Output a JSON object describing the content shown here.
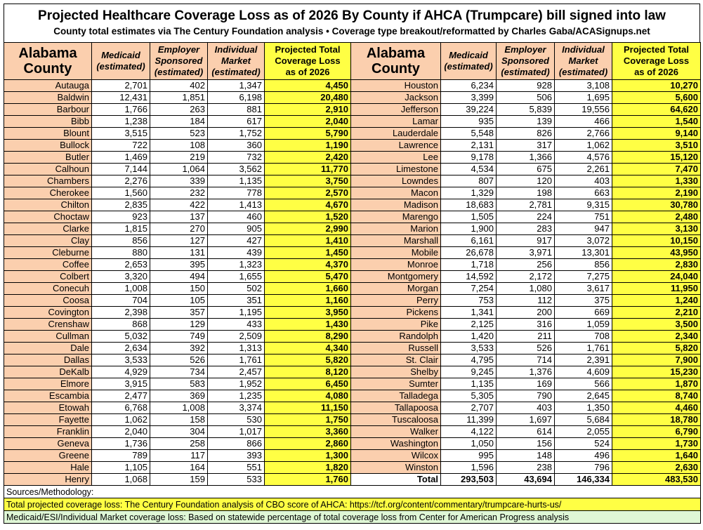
{
  "header": {
    "title": "Projected Healthcare Coverage Loss as of 2026 By County if AHCA (Trumpcare) bill signed into law",
    "subtitle": "County total estimates via The Century Foundation analysis • Coverage type breakout/reformatted by Charles Gaba/ACASignups.net"
  },
  "table": {
    "columns": [
      "Alabama\nCounty",
      "Medicaid\n(estimated)",
      "Employer\nSponsored\n(estimated)",
      "Individual\nMarket\n(estimated)",
      "Projected Total\nCoverage Loss\nas of 2026"
    ],
    "left_rows": [
      [
        "Autauga",
        "2,701",
        "402",
        "1,347",
        "4,450"
      ],
      [
        "Baldwin",
        "12,431",
        "1,851",
        "6,198",
        "20,480"
      ],
      [
        "Barbour",
        "1,766",
        "263",
        "881",
        "2,910"
      ],
      [
        "Bibb",
        "1,238",
        "184",
        "617",
        "2,040"
      ],
      [
        "Blount",
        "3,515",
        "523",
        "1,752",
        "5,790"
      ],
      [
        "Bullock",
        "722",
        "108",
        "360",
        "1,190"
      ],
      [
        "Butler",
        "1,469",
        "219",
        "732",
        "2,420"
      ],
      [
        "Calhoun",
        "7,144",
        "1,064",
        "3,562",
        "11,770"
      ],
      [
        "Chambers",
        "2,276",
        "339",
        "1,135",
        "3,750"
      ],
      [
        "Cherokee",
        "1,560",
        "232",
        "778",
        "2,570"
      ],
      [
        "Chilton",
        "2,835",
        "422",
        "1,413",
        "4,670"
      ],
      [
        "Choctaw",
        "923",
        "137",
        "460",
        "1,520"
      ],
      [
        "Clarke",
        "1,815",
        "270",
        "905",
        "2,990"
      ],
      [
        "Clay",
        "856",
        "127",
        "427",
        "1,410"
      ],
      [
        "Cleburne",
        "880",
        "131",
        "439",
        "1,450"
      ],
      [
        "Coffee",
        "2,653",
        "395",
        "1,323",
        "4,370"
      ],
      [
        "Colbert",
        "3,320",
        "494",
        "1,655",
        "5,470"
      ],
      [
        "Conecuh",
        "1,008",
        "150",
        "502",
        "1,660"
      ],
      [
        "Coosa",
        "704",
        "105",
        "351",
        "1,160"
      ],
      [
        "Covington",
        "2,398",
        "357",
        "1,195",
        "3,950"
      ],
      [
        "Crenshaw",
        "868",
        "129",
        "433",
        "1,430"
      ],
      [
        "Cullman",
        "5,032",
        "749",
        "2,509",
        "8,290"
      ],
      [
        "Dale",
        "2,634",
        "392",
        "1,313",
        "4,340"
      ],
      [
        "Dallas",
        "3,533",
        "526",
        "1,761",
        "5,820"
      ],
      [
        "DeKalb",
        "4,929",
        "734",
        "2,457",
        "8,120"
      ],
      [
        "Elmore",
        "3,915",
        "583",
        "1,952",
        "6,450"
      ],
      [
        "Escambia",
        "2,477",
        "369",
        "1,235",
        "4,080"
      ],
      [
        "Etowah",
        "6,768",
        "1,008",
        "3,374",
        "11,150"
      ],
      [
        "Fayette",
        "1,062",
        "158",
        "530",
        "1,750"
      ],
      [
        "Franklin",
        "2,040",
        "304",
        "1,017",
        "3,360"
      ],
      [
        "Geneva",
        "1,736",
        "258",
        "866",
        "2,860"
      ],
      [
        "Greene",
        "789",
        "117",
        "393",
        "1,300"
      ],
      [
        "Hale",
        "1,105",
        "164",
        "551",
        "1,820"
      ],
      [
        "Henry",
        "1,068",
        "159",
        "533",
        "1,760"
      ]
    ],
    "right_rows": [
      [
        "Houston",
        "6,234",
        "928",
        "3,108",
        "10,270"
      ],
      [
        "Jackson",
        "3,399",
        "506",
        "1,695",
        "5,600"
      ],
      [
        "Jefferson",
        "39,224",
        "5,839",
        "19,556",
        "64,620"
      ],
      [
        "Lamar",
        "935",
        "139",
        "466",
        "1,540"
      ],
      [
        "Lauderdale",
        "5,548",
        "826",
        "2,766",
        "9,140"
      ],
      [
        "Lawrence",
        "2,131",
        "317",
        "1,062",
        "3,510"
      ],
      [
        "Lee",
        "9,178",
        "1,366",
        "4,576",
        "15,120"
      ],
      [
        "Limestone",
        "4,534",
        "675",
        "2,261",
        "7,470"
      ],
      [
        "Lowndes",
        "807",
        "120",
        "403",
        "1,330"
      ],
      [
        "Macon",
        "1,329",
        "198",
        "663",
        "2,190"
      ],
      [
        "Madison",
        "18,683",
        "2,781",
        "9,315",
        "30,780"
      ],
      [
        "Marengo",
        "1,505",
        "224",
        "751",
        "2,480"
      ],
      [
        "Marion",
        "1,900",
        "283",
        "947",
        "3,130"
      ],
      [
        "Marshall",
        "6,161",
        "917",
        "3,072",
        "10,150"
      ],
      [
        "Mobile",
        "26,678",
        "3,971",
        "13,301",
        "43,950"
      ],
      [
        "Monroe",
        "1,718",
        "256",
        "856",
        "2,830"
      ],
      [
        "Montgomery",
        "14,592",
        "2,172",
        "7,275",
        "24,040"
      ],
      [
        "Morgan",
        "7,254",
        "1,080",
        "3,617",
        "11,950"
      ],
      [
        "Perry",
        "753",
        "112",
        "375",
        "1,240"
      ],
      [
        "Pickens",
        "1,341",
        "200",
        "669",
        "2,210"
      ],
      [
        "Pike",
        "2,125",
        "316",
        "1,059",
        "3,500"
      ],
      [
        "Randolph",
        "1,420",
        "211",
        "708",
        "2,340"
      ],
      [
        "Russell",
        "3,533",
        "526",
        "1,761",
        "5,820"
      ],
      [
        "St. Clair",
        "4,795",
        "714",
        "2,391",
        "7,900"
      ],
      [
        "Shelby",
        "9,245",
        "1,376",
        "4,609",
        "15,230"
      ],
      [
        "Sumter",
        "1,135",
        "169",
        "566",
        "1,870"
      ],
      [
        "Talladega",
        "5,305",
        "790",
        "2,645",
        "8,740"
      ],
      [
        "Tallapoosa",
        "2,707",
        "403",
        "1,350",
        "4,460"
      ],
      [
        "Tuscaloosa",
        "11,399",
        "1,697",
        "5,684",
        "18,780"
      ],
      [
        "Walker",
        "4,122",
        "614",
        "2,055",
        "6,790"
      ],
      [
        "Washington",
        "1,050",
        "156",
        "524",
        "1,730"
      ],
      [
        "Wilcox",
        "995",
        "148",
        "496",
        "1,640"
      ],
      [
        "Winston",
        "1,596",
        "238",
        "796",
        "2,630"
      ],
      [
        "Total",
        "293,503",
        "43,694",
        "146,334",
        "483,530"
      ]
    ]
  },
  "footer": {
    "sources_label": "Sources/Methodology:",
    "notes": [
      "Total projected coverage loss: The Century Foundation analysis of CBO score of AHCA: https://tcf.org/content/commentary/trumpcare-hurts-us/",
      "Medicaid/ESI/Individual Market coverage loss: Based on statewide percentage of total coverage loss from Center for American Progress analysis"
    ]
  }
}
